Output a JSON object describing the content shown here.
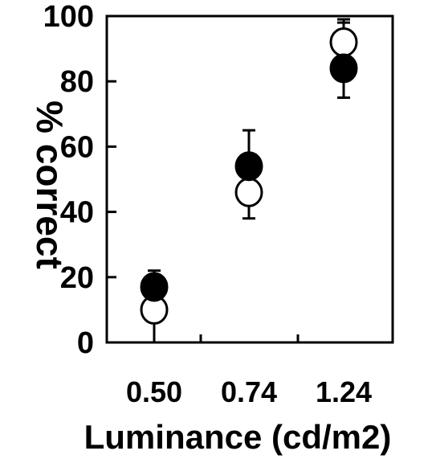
{
  "chart_data": {
    "type": "scatter",
    "categories": [
      "0.50",
      "0.74",
      "1.24"
    ],
    "xlabel": "Luminance (cd/m2)",
    "ylabel": "% correct",
    "ylim": [
      0,
      100
    ],
    "yticks": [
      "0",
      "20",
      "40",
      "60",
      "80",
      "100"
    ],
    "grid": false,
    "series": [
      {
        "marker": "filled-circle",
        "values": [
          17,
          54,
          84
        ],
        "error_upper": [
          22,
          65,
          98
        ],
        "error_lower": [
          17,
          54,
          75
        ]
      },
      {
        "marker": "open-circle",
        "values": [
          10,
          46,
          92
        ],
        "error_upper": [
          10,
          46,
          99
        ],
        "error_lower": [
          0,
          38,
          92
        ]
      }
    ],
    "colors": {
      "filled": "#000000",
      "open": "#ffffff",
      "stroke": "#000000"
    }
  }
}
